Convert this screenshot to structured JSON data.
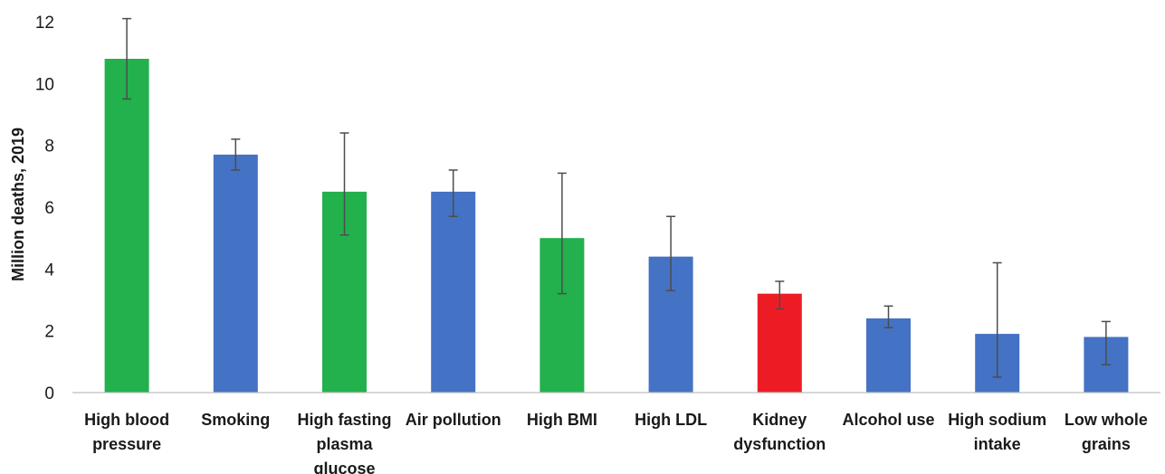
{
  "chart_data": {
    "type": "bar",
    "title": "",
    "xlabel": "",
    "ylabel": "Million deaths, 2019",
    "ylim": [
      0,
      12
    ],
    "yticks": [
      0,
      2,
      4,
      6,
      8,
      10,
      12
    ],
    "grid": false,
    "legend": "none",
    "categories": [
      [
        "High blood",
        "pressure"
      ],
      [
        "Smoking"
      ],
      [
        "High fasting",
        "plasma",
        "glucose"
      ],
      [
        "Air pollution"
      ],
      [
        "High BMI"
      ],
      [
        "High LDL"
      ],
      [
        "Kidney",
        "dysfunction"
      ],
      [
        "Alcohol use"
      ],
      [
        "High sodium",
        "intake"
      ],
      [
        "Low whole",
        "grains"
      ]
    ],
    "values": [
      10.8,
      7.7,
      6.5,
      6.5,
      5.0,
      4.4,
      3.2,
      2.4,
      1.9,
      1.8
    ],
    "error_low": [
      9.5,
      7.2,
      5.1,
      5.7,
      3.2,
      3.3,
      2.7,
      2.1,
      0.5,
      0.9
    ],
    "error_high": [
      12.1,
      8.2,
      8.4,
      7.2,
      7.1,
      5.7,
      3.6,
      2.8,
      4.2,
      2.3
    ],
    "bar_colors": [
      "#22b14c",
      "#4472c4",
      "#22b14c",
      "#4472c4",
      "#22b14c",
      "#4472c4",
      "#ed1c24",
      "#4472c4",
      "#4472c4",
      "#4472c4"
    ]
  }
}
